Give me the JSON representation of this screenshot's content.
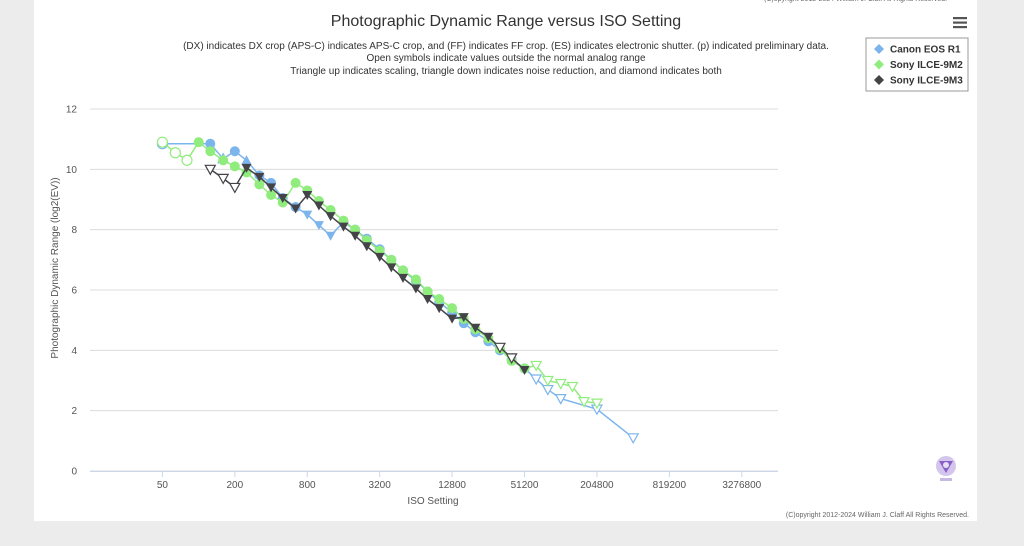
{
  "copyright": "(C)opyright 2012-2024 William J. Claff All Rights Reserved.",
  "menu": {
    "icon": "hamburger-menu-icon"
  },
  "watermark": {
    "icon": "logo-badge-icon"
  },
  "colors": {
    "canon": "#7cb5ec",
    "sony9m2": "#90ed7d",
    "sony9m3": "#434348",
    "grid": "#dcdcdc"
  },
  "chart_data": {
    "type": "line",
    "title": "Photographic Dynamic Range versus ISO Setting",
    "subtitle": [
      "(DX) indicates DX crop (APS-C) indicates APS-C crop, and (FF) indicates FF crop. (ES) indicates electronic shutter. (p) indicated preliminary data.",
      "Open symbols indicate values outside the normal analog range",
      "Triangle up indicates scaling, triangle down indicates noise reduction, and diamond indicates both"
    ],
    "xlabel": "ISO Setting",
    "ylabel": "Photographic Dynamic Range (log2(EV))",
    "x_scale": "log2",
    "xlim": [
      12.5,
      6553600
    ],
    "ylim": [
      0,
      12
    ],
    "x_ticks": [
      50,
      200,
      800,
      3200,
      12800,
      51200,
      204800,
      819200,
      3276800
    ],
    "y_ticks": [
      0,
      2,
      4,
      6,
      8,
      10,
      12
    ],
    "grid": true,
    "legend_position": "top-right",
    "series": [
      {
        "name": "Canon EOS R1",
        "color": "#7cb5ec",
        "points": [
          {
            "x": 50,
            "y": 10.85,
            "m": "circle",
            "f": false
          },
          {
            "x": 125,
            "y": 10.85,
            "m": "circle",
            "f": true
          },
          {
            "x": 160,
            "y": 10.35,
            "m": "tri-up",
            "f": false
          },
          {
            "x": 200,
            "y": 10.6,
            "m": "circle",
            "f": true
          },
          {
            "x": 250,
            "y": 10.3,
            "m": "tri-up",
            "f": true
          },
          {
            "x": 320,
            "y": 9.8,
            "m": "circle",
            "f": true
          },
          {
            "x": 400,
            "y": 9.55,
            "m": "circle",
            "f": true
          },
          {
            "x": 500,
            "y": 9.05,
            "m": "circle",
            "f": true
          },
          {
            "x": 640,
            "y": 8.75,
            "m": "circle",
            "f": true
          },
          {
            "x": 800,
            "y": 8.5,
            "m": "tri-down",
            "f": true
          },
          {
            "x": 1000,
            "y": 8.15,
            "m": "tri-down",
            "f": true
          },
          {
            "x": 1250,
            "y": 7.8,
            "m": "tri-down",
            "f": true
          },
          {
            "x": 1600,
            "y": 8.25,
            "m": "circle",
            "f": true
          },
          {
            "x": 2000,
            "y": 8.0,
            "m": "circle",
            "f": true
          },
          {
            "x": 2500,
            "y": 7.7,
            "m": "circle",
            "f": true
          },
          {
            "x": 3200,
            "y": 7.35,
            "m": "circle",
            "f": true
          },
          {
            "x": 4000,
            "y": 7.0,
            "m": "circle",
            "f": true
          },
          {
            "x": 5000,
            "y": 6.65,
            "m": "circle",
            "f": true
          },
          {
            "x": 6400,
            "y": 6.3,
            "m": "circle",
            "f": true
          },
          {
            "x": 8000,
            "y": 5.95,
            "m": "circle",
            "f": true
          },
          {
            "x": 10000,
            "y": 5.6,
            "m": "circle",
            "f": true
          },
          {
            "x": 12800,
            "y": 5.25,
            "m": "circle",
            "f": true
          },
          {
            "x": 16000,
            "y": 4.9,
            "m": "circle",
            "f": true
          },
          {
            "x": 20000,
            "y": 4.6,
            "m": "circle",
            "f": true
          },
          {
            "x": 25600,
            "y": 4.3,
            "m": "circle",
            "f": true
          },
          {
            "x": 32000,
            "y": 4.0,
            "m": "circle",
            "f": true
          },
          {
            "x": 40000,
            "y": 3.7,
            "m": "circle",
            "f": true
          },
          {
            "x": 51200,
            "y": 3.4,
            "m": "circle",
            "f": true
          },
          {
            "x": 64000,
            "y": 3.05,
            "m": "tri-down",
            "f": false
          },
          {
            "x": 80000,
            "y": 2.7,
            "m": "tri-down",
            "f": false
          },
          {
            "x": 102400,
            "y": 2.4,
            "m": "tri-down",
            "f": false
          },
          {
            "x": 204800,
            "y": 2.05,
            "m": "tri-down",
            "f": false
          },
          {
            "x": 409600,
            "y": 1.1,
            "m": "tri-down",
            "f": false
          }
        ]
      },
      {
        "name": "Sony ILCE-9M2",
        "color": "#90ed7d",
        "points": [
          {
            "x": 50,
            "y": 10.9,
            "m": "circle",
            "f": false
          },
          {
            "x": 64,
            "y": 10.55,
            "m": "circle",
            "f": false
          },
          {
            "x": 80,
            "y": 10.3,
            "m": "circle",
            "f": false
          },
          {
            "x": 100,
            "y": 10.9,
            "m": "circle",
            "f": true
          },
          {
            "x": 125,
            "y": 10.6,
            "m": "circle",
            "f": true
          },
          {
            "x": 160,
            "y": 10.3,
            "m": "circle",
            "f": true
          },
          {
            "x": 200,
            "y": 10.1,
            "m": "circle",
            "f": true
          },
          {
            "x": 250,
            "y": 9.9,
            "m": "circle",
            "f": true
          },
          {
            "x": 320,
            "y": 9.5,
            "m": "circle",
            "f": true
          },
          {
            "x": 400,
            "y": 9.15,
            "m": "circle",
            "f": true
          },
          {
            "x": 500,
            "y": 8.9,
            "m": "circle",
            "f": true
          },
          {
            "x": 640,
            "y": 9.55,
            "m": "circle",
            "f": true
          },
          {
            "x": 800,
            "y": 9.3,
            "m": "circle",
            "f": true
          },
          {
            "x": 1000,
            "y": 8.95,
            "m": "circle",
            "f": true
          },
          {
            "x": 1250,
            "y": 8.65,
            "m": "circle",
            "f": true
          },
          {
            "x": 1600,
            "y": 8.3,
            "m": "circle",
            "f": true
          },
          {
            "x": 2000,
            "y": 8.0,
            "m": "circle",
            "f": true
          },
          {
            "x": 2500,
            "y": 7.65,
            "m": "circle",
            "f": true
          },
          {
            "x": 3200,
            "y": 7.3,
            "m": "circle",
            "f": true
          },
          {
            "x": 4000,
            "y": 7.0,
            "m": "circle",
            "f": true
          },
          {
            "x": 5000,
            "y": 6.65,
            "m": "circle",
            "f": true
          },
          {
            "x": 6400,
            "y": 6.35,
            "m": "circle",
            "f": true
          },
          {
            "x": 8000,
            "y": 5.95,
            "m": "circle",
            "f": true
          },
          {
            "x": 10000,
            "y": 5.7,
            "m": "circle",
            "f": true
          },
          {
            "x": 12800,
            "y": 5.4,
            "m": "circle",
            "f": true
          },
          {
            "x": 16000,
            "y": 5.05,
            "m": "circle",
            "f": true
          },
          {
            "x": 20000,
            "y": 4.7,
            "m": "circle",
            "f": true
          },
          {
            "x": 25600,
            "y": 4.4,
            "m": "circle",
            "f": true
          },
          {
            "x": 32000,
            "y": 4.05,
            "m": "circle",
            "f": true
          },
          {
            "x": 40000,
            "y": 3.65,
            "m": "circle",
            "f": true
          },
          {
            "x": 51200,
            "y": 3.4,
            "m": "circle",
            "f": true
          },
          {
            "x": 64000,
            "y": 3.5,
            "m": "tri-down",
            "f": false
          },
          {
            "x": 80000,
            "y": 3.0,
            "m": "tri-down",
            "f": false
          },
          {
            "x": 102400,
            "y": 2.9,
            "m": "tri-down",
            "f": false
          },
          {
            "x": 128000,
            "y": 2.8,
            "m": "tri-down",
            "f": false
          },
          {
            "x": 160000,
            "y": 2.3,
            "m": "tri-down",
            "f": false
          },
          {
            "x": 204800,
            "y": 2.25,
            "m": "tri-down",
            "f": false
          }
        ]
      },
      {
        "name": "Sony ILCE-9M3",
        "color": "#434348",
        "points": [
          {
            "x": 125,
            "y": 10.0,
            "m": "tri-down",
            "f": false
          },
          {
            "x": 160,
            "y": 9.7,
            "m": "tri-down",
            "f": false
          },
          {
            "x": 200,
            "y": 9.4,
            "m": "tri-down",
            "f": false
          },
          {
            "x": 250,
            "y": 10.05,
            "m": "tri-down",
            "f": true
          },
          {
            "x": 320,
            "y": 9.75,
            "m": "tri-down",
            "f": true
          },
          {
            "x": 400,
            "y": 9.4,
            "m": "tri-down",
            "f": true
          },
          {
            "x": 500,
            "y": 9.05,
            "m": "tri-down",
            "f": true
          },
          {
            "x": 640,
            "y": 8.7,
            "m": "tri-down",
            "f": true
          },
          {
            "x": 800,
            "y": 9.15,
            "m": "tri-down",
            "f": true
          },
          {
            "x": 1000,
            "y": 8.8,
            "m": "tri-down",
            "f": true
          },
          {
            "x": 1250,
            "y": 8.45,
            "m": "tri-down",
            "f": true
          },
          {
            "x": 1600,
            "y": 8.1,
            "m": "tri-down",
            "f": true
          },
          {
            "x": 2000,
            "y": 7.8,
            "m": "tri-down",
            "f": true
          },
          {
            "x": 2500,
            "y": 7.45,
            "m": "tri-down",
            "f": true
          },
          {
            "x": 3200,
            "y": 7.1,
            "m": "tri-down",
            "f": true
          },
          {
            "x": 4000,
            "y": 6.75,
            "m": "tri-down",
            "f": true
          },
          {
            "x": 5000,
            "y": 6.4,
            "m": "tri-down",
            "f": true
          },
          {
            "x": 6400,
            "y": 6.05,
            "m": "tri-down",
            "f": true
          },
          {
            "x": 8000,
            "y": 5.7,
            "m": "tri-down",
            "f": true
          },
          {
            "x": 10000,
            "y": 5.4,
            "m": "tri-down",
            "f": true
          },
          {
            "x": 12800,
            "y": 5.05,
            "m": "tri-down",
            "f": true
          },
          {
            "x": 16000,
            "y": 5.1,
            "m": "tri-down",
            "f": true
          },
          {
            "x": 20000,
            "y": 4.75,
            "m": "tri-down",
            "f": true
          },
          {
            "x": 25600,
            "y": 4.45,
            "m": "tri-down",
            "f": true
          },
          {
            "x": 32000,
            "y": 4.1,
            "m": "tri-down",
            "f": false
          },
          {
            "x": 40000,
            "y": 3.75,
            "m": "tri-down",
            "f": false
          },
          {
            "x": 51200,
            "y": 3.35,
            "m": "tri-down",
            "f": true
          }
        ]
      }
    ]
  }
}
